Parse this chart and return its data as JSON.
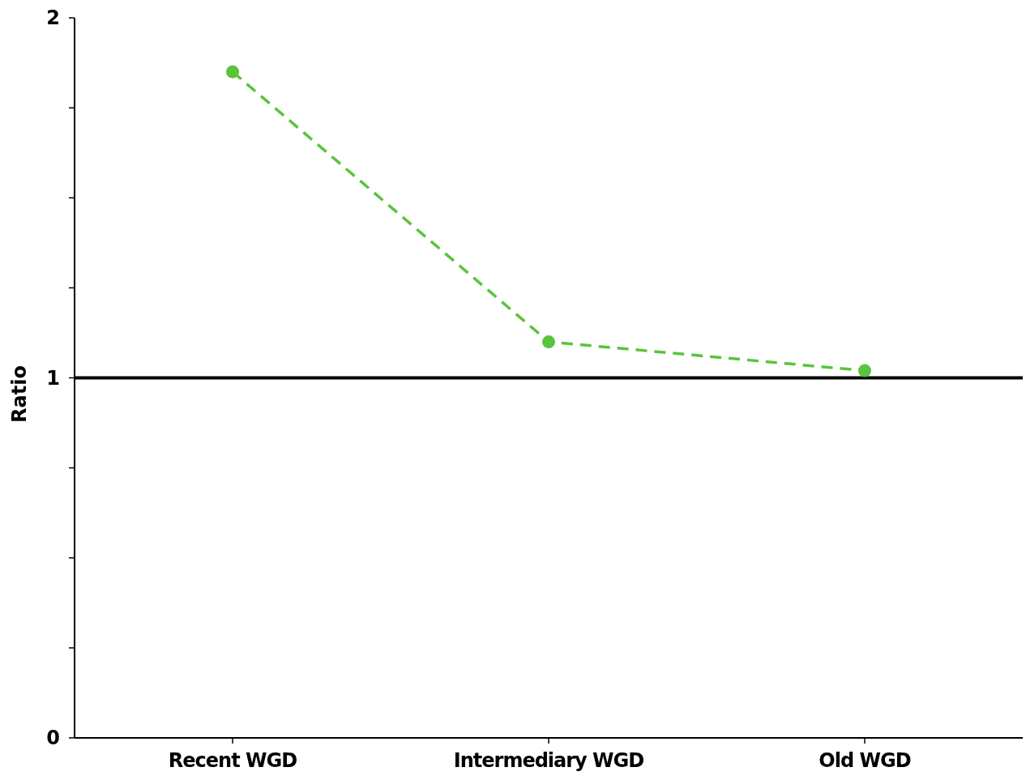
{
  "chart_data": {
    "type": "line",
    "ylabel": "Ratio",
    "categories": [
      "Recent WGD",
      "Intermediary WGD",
      "Old WGD"
    ],
    "series": [
      {
        "color": "#5ac43c",
        "values": [
          1.85,
          1.1,
          1.02
        ]
      }
    ],
    "ylim": [
      0,
      2
    ],
    "yticks": [
      0,
      {
        "value": 0.25,
        "label": null
      },
      {
        "value": 0.5,
        "label": null
      },
      {
        "value": 0.75,
        "label": null
      },
      1,
      {
        "value": 1.25,
        "label": null
      },
      {
        "value": 1.5,
        "label": null
      },
      {
        "value": 1.75,
        "label": null
      },
      2
    ],
    "ref_lines": [
      {
        "axis": "y",
        "value": 1,
        "color": "#000000"
      }
    ],
    "marker": "circle",
    "line_style": "dashed"
  }
}
